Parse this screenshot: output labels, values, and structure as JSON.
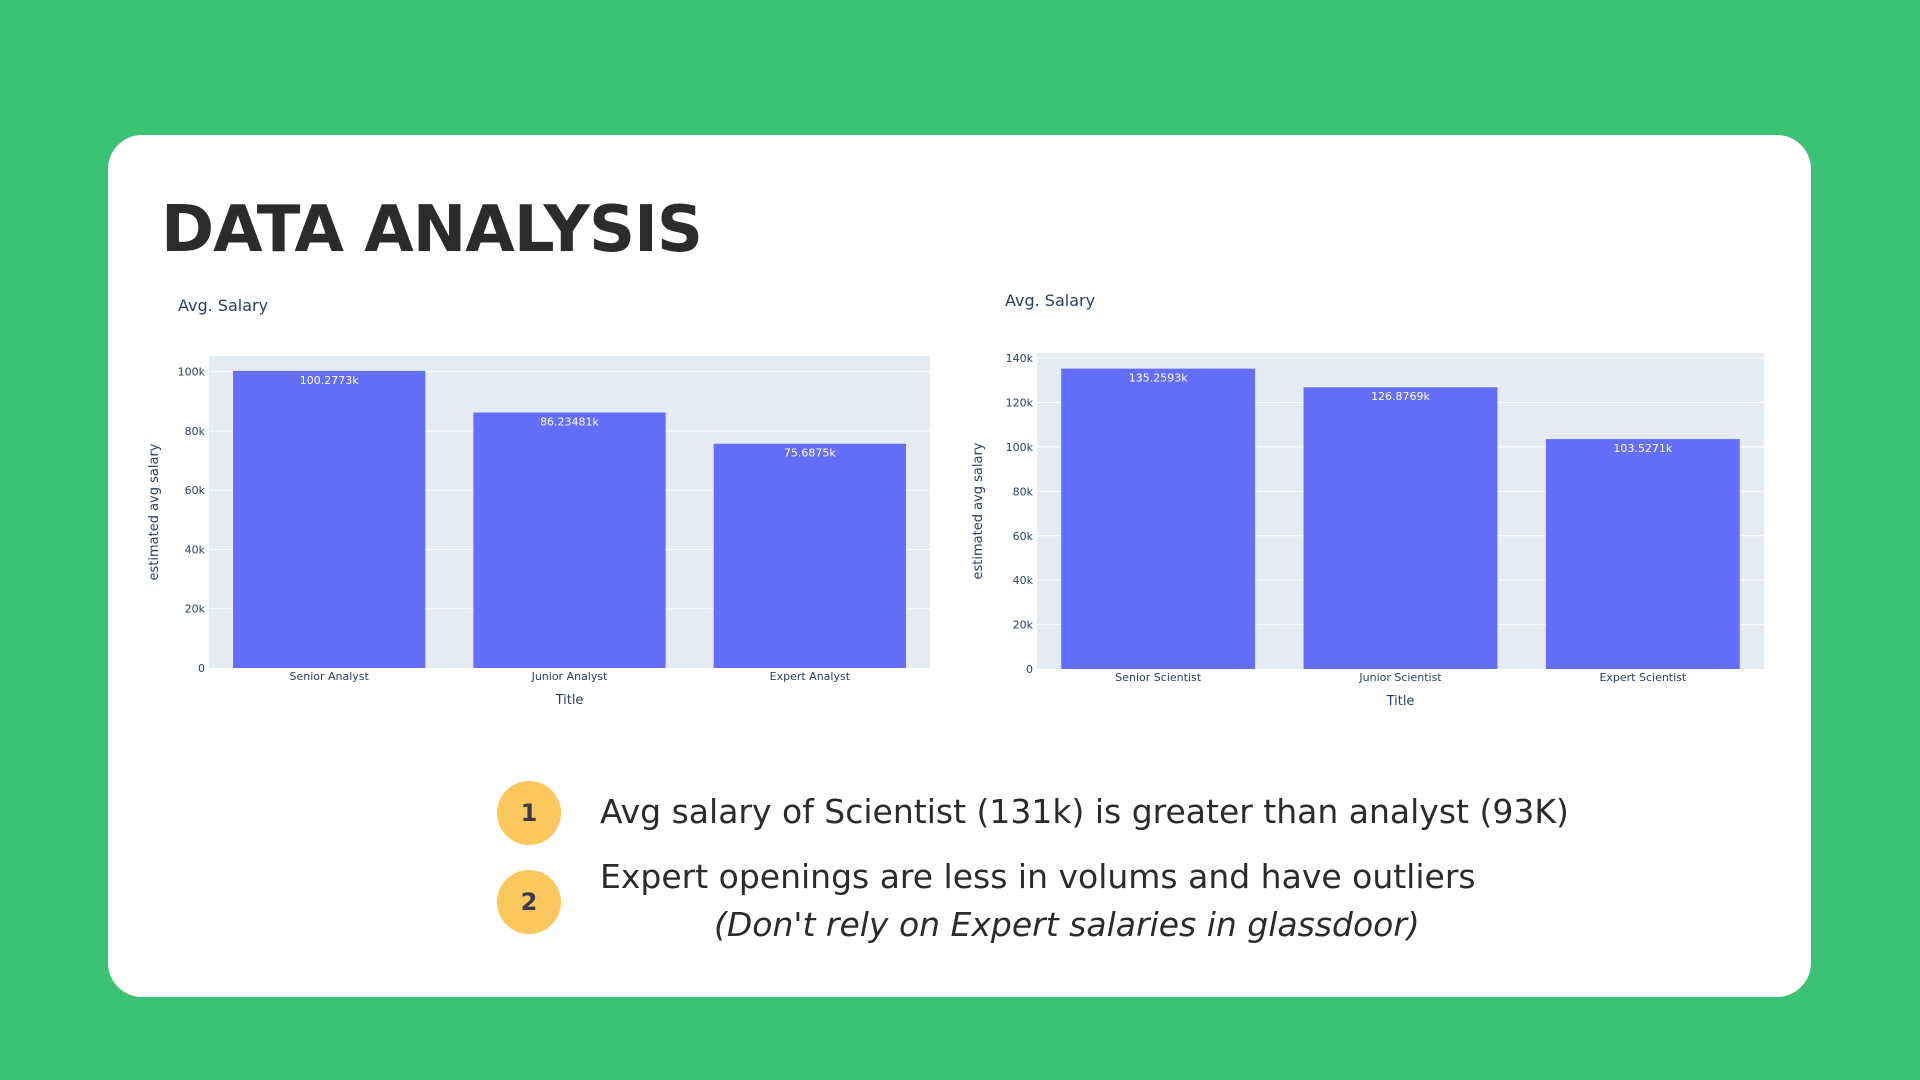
{
  "slide": {
    "title": "DATA ANALYSIS"
  },
  "colors": {
    "background": "#3cc275",
    "card": "#ffffff",
    "bar": "#636efa",
    "plot_bg": "#e5ecf6",
    "badge": "#fcc75c"
  },
  "chart_data": [
    {
      "type": "bar",
      "title": "Avg. Salary",
      "categories": [
        "Senior Analyst",
        "Junior Analyst",
        "Expert Analyst"
      ],
      "values": [
        100277.3,
        86234.81,
        75687.5
      ],
      "value_labels": [
        "100.2773k",
        "86.23481k",
        "75.6875k"
      ],
      "xlabel": "Title",
      "ylabel": "estimated avg salary",
      "ylim": [
        0,
        105300
      ],
      "yticks": [
        0,
        20000,
        40000,
        60000,
        80000,
        100000
      ],
      "ytick_labels": [
        "0",
        "20k",
        "40k",
        "60k",
        "80k",
        "100k"
      ],
      "grid": true
    },
    {
      "type": "bar",
      "title": "Avg. Salary",
      "categories": [
        "Senior Scientist",
        "Junior Scientist",
        "Expert Scientist"
      ],
      "values": [
        135259.3,
        126876.9,
        103527.1
      ],
      "value_labels": [
        "135.2593k",
        "126.8769k",
        "103.5271k"
      ],
      "xlabel": "Title",
      "ylabel": "estimated avg salary",
      "ylim": [
        0,
        142300
      ],
      "yticks": [
        0,
        20000,
        40000,
        60000,
        80000,
        100000,
        120000,
        140000
      ],
      "ytick_labels": [
        "0",
        "20k",
        "40k",
        "60k",
        "80k",
        "100k",
        "120k",
        "140k"
      ],
      "grid": true
    }
  ],
  "points": [
    {
      "number": "1",
      "text": "Avg salary of Scientist (131k) is greater than analyst (93K)"
    },
    {
      "number": "2",
      "text": "Expert openings are less in volums and have outliers",
      "note": "(Don't rely on Expert salaries in glassdoor)"
    }
  ]
}
